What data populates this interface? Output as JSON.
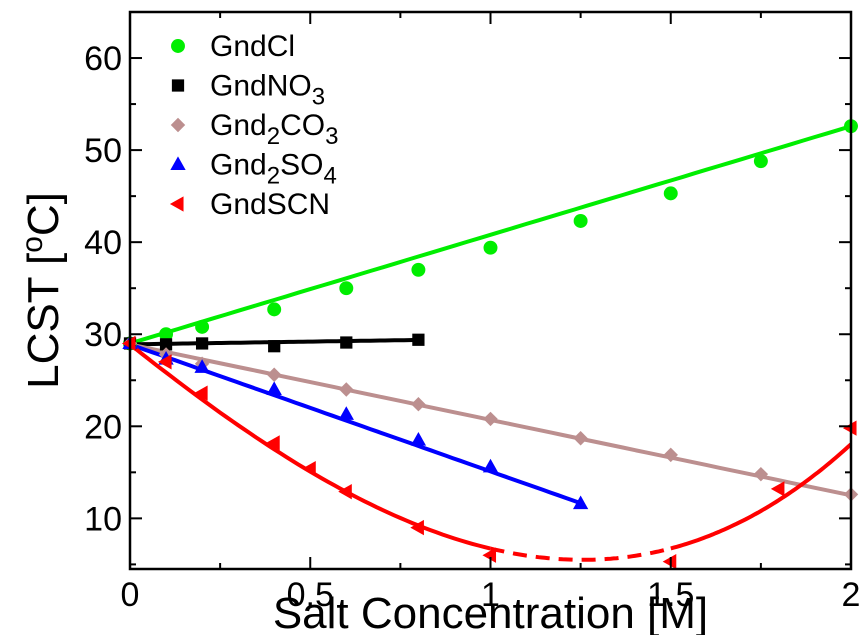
{
  "chart_data": {
    "type": "scatter",
    "title": "",
    "xlabel": "Salt Concentration [M]",
    "ylabel": {
      "base": "LCST [",
      "sup": "o",
      "rest": "C]"
    },
    "xlim": [
      0,
      2
    ],
    "ylim": [
      4.5,
      65
    ],
    "xticks": [
      0,
      0.5,
      1,
      1.5,
      2
    ],
    "xtick_labels": [
      "0",
      "0.5",
      "1",
      "1.5",
      "2"
    ],
    "yticks": [
      10,
      20,
      30,
      40,
      50,
      60
    ],
    "ytick_labels": [
      "10",
      "20",
      "30",
      "40",
      "50",
      "60"
    ],
    "grid": false,
    "legend_position": "top-left",
    "series": [
      {
        "name": "GndCl",
        "label_parts": [
          {
            "t": "GndCl"
          }
        ],
        "color": "#00ee00",
        "marker": "circle",
        "x": [
          0,
          0.1,
          0.2,
          0.4,
          0.6,
          0.8,
          1.0,
          1.25,
          1.5,
          1.75,
          2.0
        ],
        "y": [
          29.0,
          30.0,
          30.8,
          32.7,
          35.0,
          37.0,
          39.4,
          42.3,
          45.3,
          48.8,
          52.6
        ],
        "fit": {
          "kind": "linear",
          "coef": [
            29.0,
            11.8
          ],
          "segments": [
            {
              "from": 0,
              "to": 2,
              "dashed": false
            }
          ]
        }
      },
      {
        "name": "GndNO3",
        "label_parts": [
          {
            "t": "GndNO"
          },
          {
            "t": "3",
            "sub": true
          }
        ],
        "color": "#000000",
        "marker": "square",
        "x": [
          0,
          0.1,
          0.2,
          0.4,
          0.6,
          0.8
        ],
        "y": [
          29.0,
          28.9,
          29.0,
          28.7,
          29.1,
          29.4
        ],
        "fit": {
          "kind": "linear",
          "coef": [
            28.9,
            0.6
          ],
          "segments": [
            {
              "from": 0,
              "to": 0.8,
              "dashed": false
            }
          ]
        }
      },
      {
        "name": "Gnd2CO3",
        "label_parts": [
          {
            "t": "Gnd"
          },
          {
            "t": "2",
            "sub": true
          },
          {
            "t": "CO"
          },
          {
            "t": "3",
            "sub": true
          }
        ],
        "color": "#bc8f8f",
        "marker": "diamond",
        "x": [
          0,
          0.1,
          0.2,
          0.4,
          0.6,
          0.8,
          1.0,
          1.25,
          1.5,
          1.75,
          2.0
        ],
        "y": [
          29.0,
          27.8,
          26.8,
          25.6,
          24.0,
          22.4,
          20.8,
          18.7,
          16.9,
          14.8,
          12.6
        ],
        "fit": {
          "kind": "linear",
          "coef": [
            28.9,
            -8.2
          ],
          "segments": [
            {
              "from": 0,
              "to": 2,
              "dashed": false
            }
          ]
        }
      },
      {
        "name": "Gnd2SO4",
        "label_parts": [
          {
            "t": "Gnd"
          },
          {
            "t": "2",
            "sub": true
          },
          {
            "t": "SO"
          },
          {
            "t": "4",
            "sub": true
          }
        ],
        "color": "#0000ff",
        "marker": "triangle-up",
        "x": [
          0,
          0.1,
          0.2,
          0.4,
          0.6,
          0.8,
          1.0,
          1.25
        ],
        "y": [
          29.0,
          27.3,
          26.4,
          24.0,
          21.3,
          18.5,
          15.6,
          11.6
        ],
        "fit": {
          "kind": "linear",
          "coef": [
            28.9,
            -13.8
          ],
          "segments": [
            {
              "from": 0,
              "to": 1.25,
              "dashed": false
            }
          ]
        }
      },
      {
        "name": "GndSCN",
        "label_parts": [
          {
            "t": "GndSCN"
          }
        ],
        "color": "#ff0000",
        "marker": "triangle-left",
        "x": [
          0,
          0.1,
          0.2,
          0.4,
          0.5,
          0.6,
          0.8,
          1.0,
          1.5,
          1.8,
          2.0
        ],
        "y": [
          29.0,
          27.0,
          23.6,
          18.2,
          15.4,
          12.9,
          9.0,
          6.0,
          5.3,
          13.2,
          19.8
        ],
        "fit": {
          "kind": "cubic",
          "coef": [
            28.9,
            -31.14,
            5.06,
            3.9
          ],
          "segments": [
            {
              "from": 0,
              "to": 1.0,
              "dashed": false
            },
            {
              "from": 1.0,
              "to": 1.5,
              "dashed": true
            },
            {
              "from": 1.5,
              "to": 2.0,
              "dashed": false
            }
          ]
        }
      }
    ]
  }
}
